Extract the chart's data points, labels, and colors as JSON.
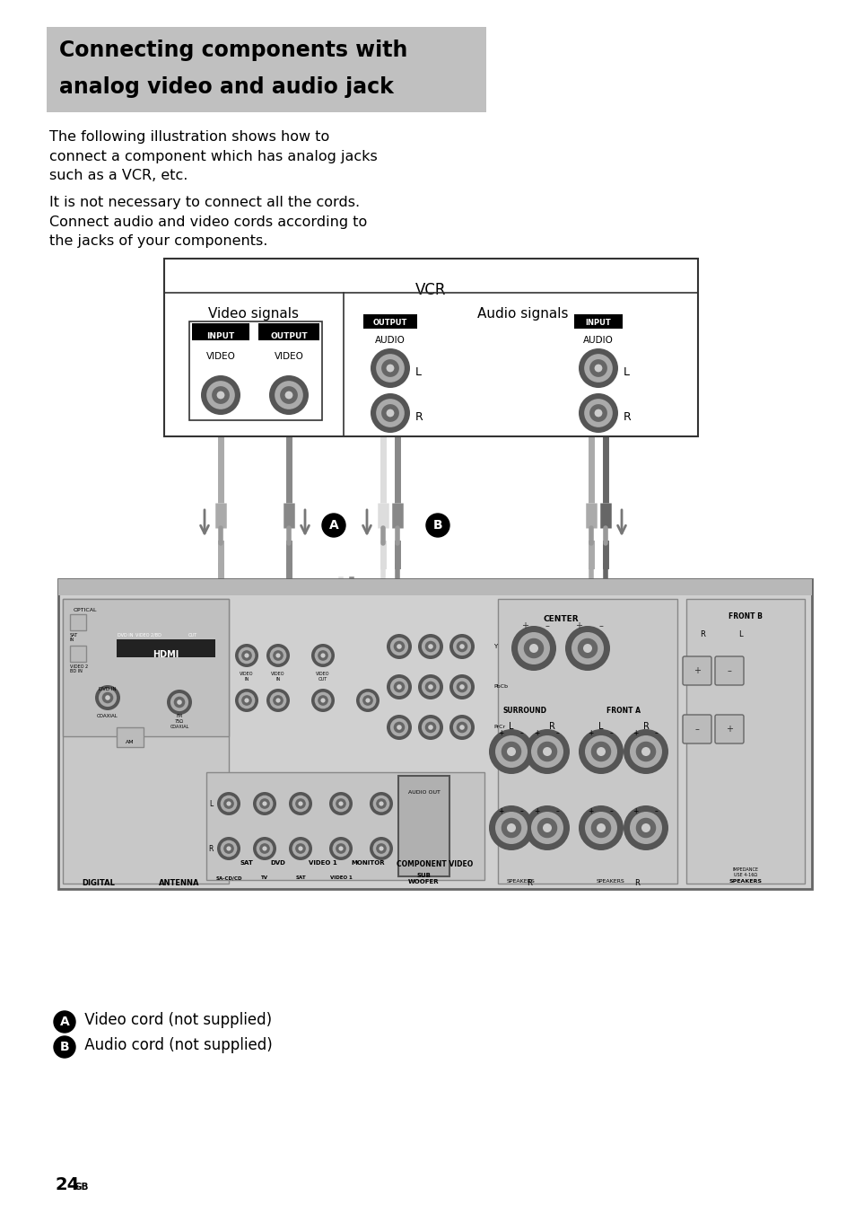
{
  "title_line1": "Connecting components with",
  "title_line2": "analog video and audio jack",
  "title_bg": "#c0c0c0",
  "body_text_1": "The following illustration shows how to\nconnect a component which has analog jacks\nsuch as a VCR, etc.",
  "body_text_2": "It is not necessary to connect all the cords.\nConnect audio and video cords according to\nthe jacks of your components.",
  "vcr_label": "VCR",
  "video_signals": "Video signals",
  "audio_signals": "Audio signals",
  "label_A": "A",
  "label_B": "B",
  "caption_A": " Video cord (not supplied)",
  "caption_B": " Audio cord (not supplied)",
  "page_num": "24",
  "page_suffix": "GB",
  "bg_color": "#ffffff"
}
